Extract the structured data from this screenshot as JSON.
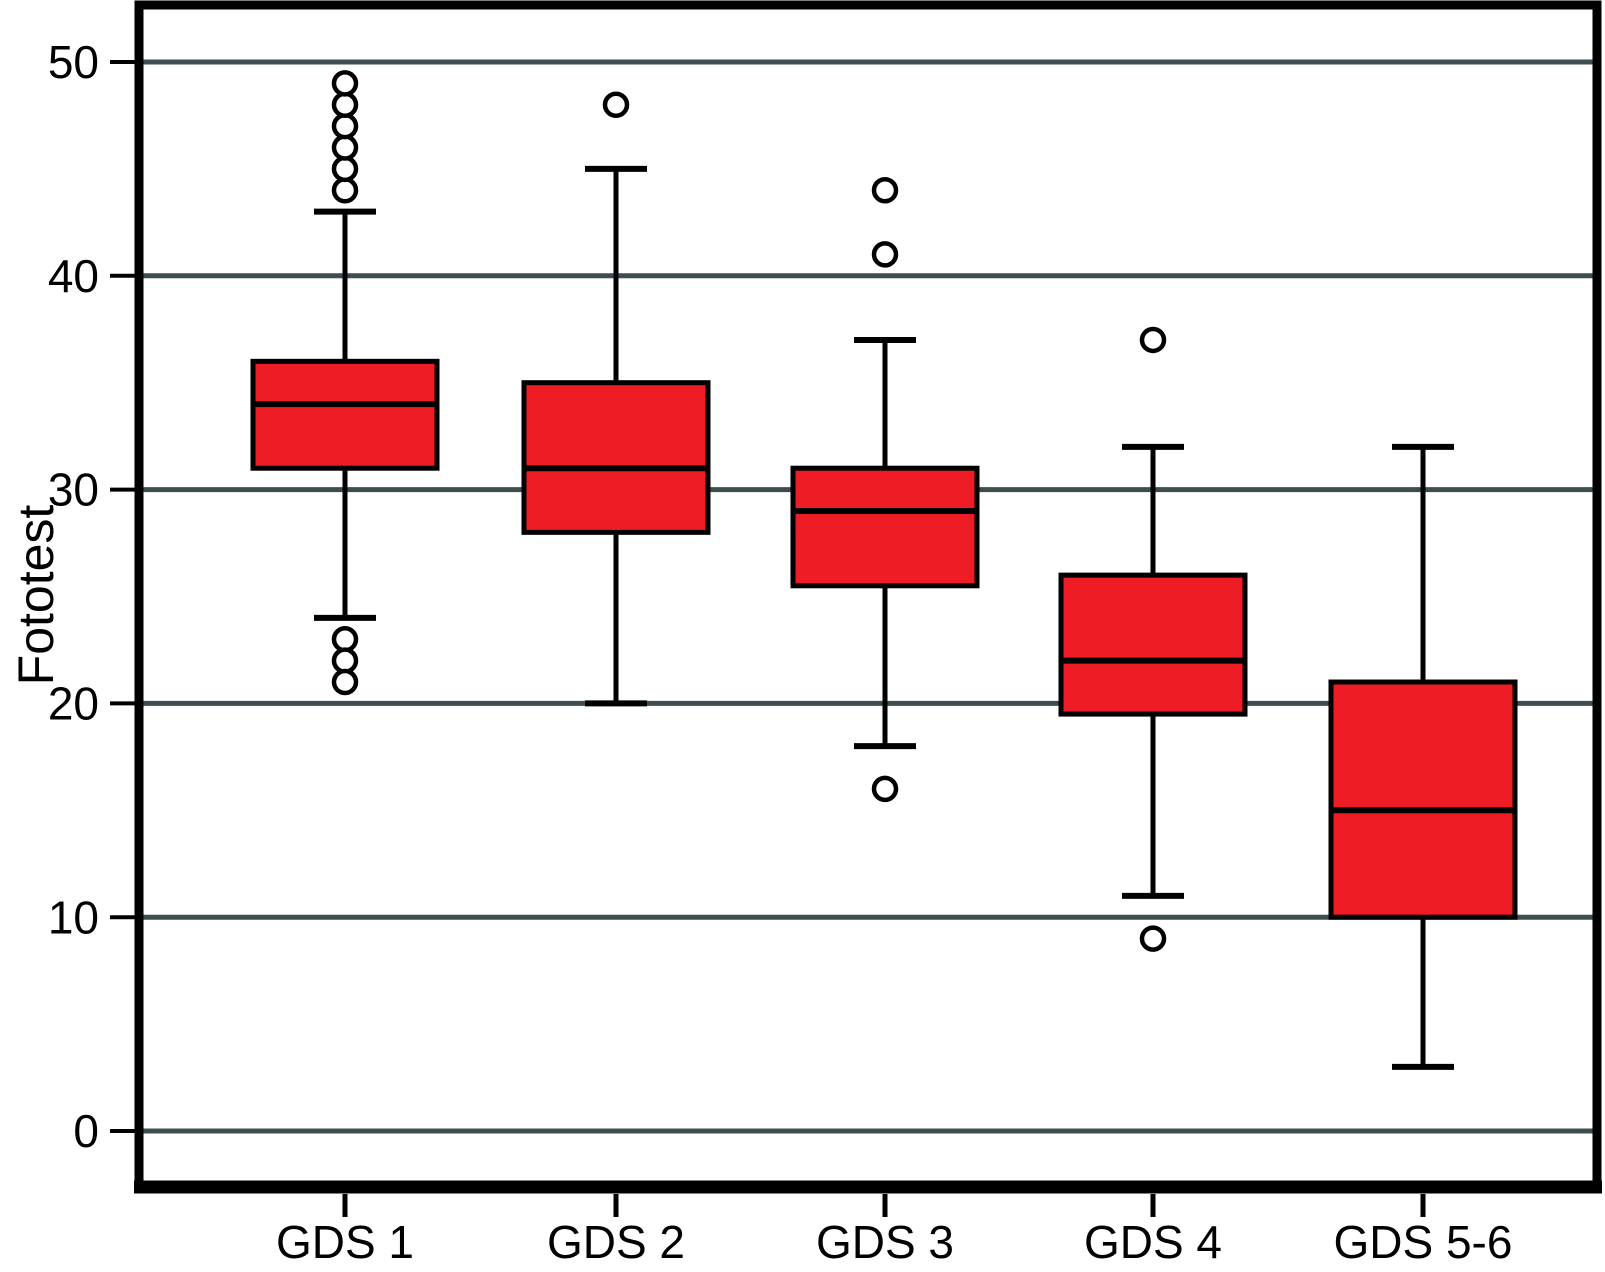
{
  "chart_data": {
    "type": "box",
    "title": "",
    "xlabel": "",
    "ylabel": "Fototest",
    "categories": [
      "GDS 1",
      "GDS 2",
      "GDS 3",
      "GDS 4",
      "GDS 5-6"
    ],
    "y_ticks": [
      0,
      10,
      20,
      30,
      40,
      50
    ],
    "ylim": [
      -3,
      53
    ],
    "grid": "horizontal",
    "legend": "none",
    "boxes": [
      {
        "category": "GDS 1",
        "whisker_low": 24,
        "q1": 31,
        "median": 34,
        "q3": 36,
        "whisker_high": 43,
        "outliers_high": [
          44,
          45,
          46,
          47,
          48,
          49
        ],
        "outliers_low": [
          23,
          22,
          21
        ]
      },
      {
        "category": "GDS 2",
        "whisker_low": 20,
        "q1": 28,
        "median": 31,
        "q3": 35,
        "whisker_high": 45,
        "outliers_high": [
          48
        ],
        "outliers_low": []
      },
      {
        "category": "GDS 3",
        "whisker_low": 18,
        "q1": 25.5,
        "median": 29,
        "q3": 31,
        "whisker_high": 37,
        "outliers_high": [
          44,
          41
        ],
        "outliers_low": [
          16
        ]
      },
      {
        "category": "GDS 4",
        "whisker_low": 11,
        "q1": 19.5,
        "median": 22,
        "q3": 26,
        "whisker_high": 32,
        "outliers_high": [
          37
        ],
        "outliers_low": [
          9
        ]
      },
      {
        "category": "GDS 5-6",
        "whisker_low": 3,
        "q1": 10,
        "median": 15,
        "q3": 21,
        "whisker_high": 32,
        "outliers_high": [],
        "outliers_low": []
      }
    ],
    "colors": {
      "box_fill": "#EE1C25",
      "box_stroke": "#000000",
      "gridline": "#3E4E50",
      "frame": "#000000",
      "outlier_fill": "#ffffff",
      "text": "#000000",
      "background": "#ffffff"
    }
  }
}
